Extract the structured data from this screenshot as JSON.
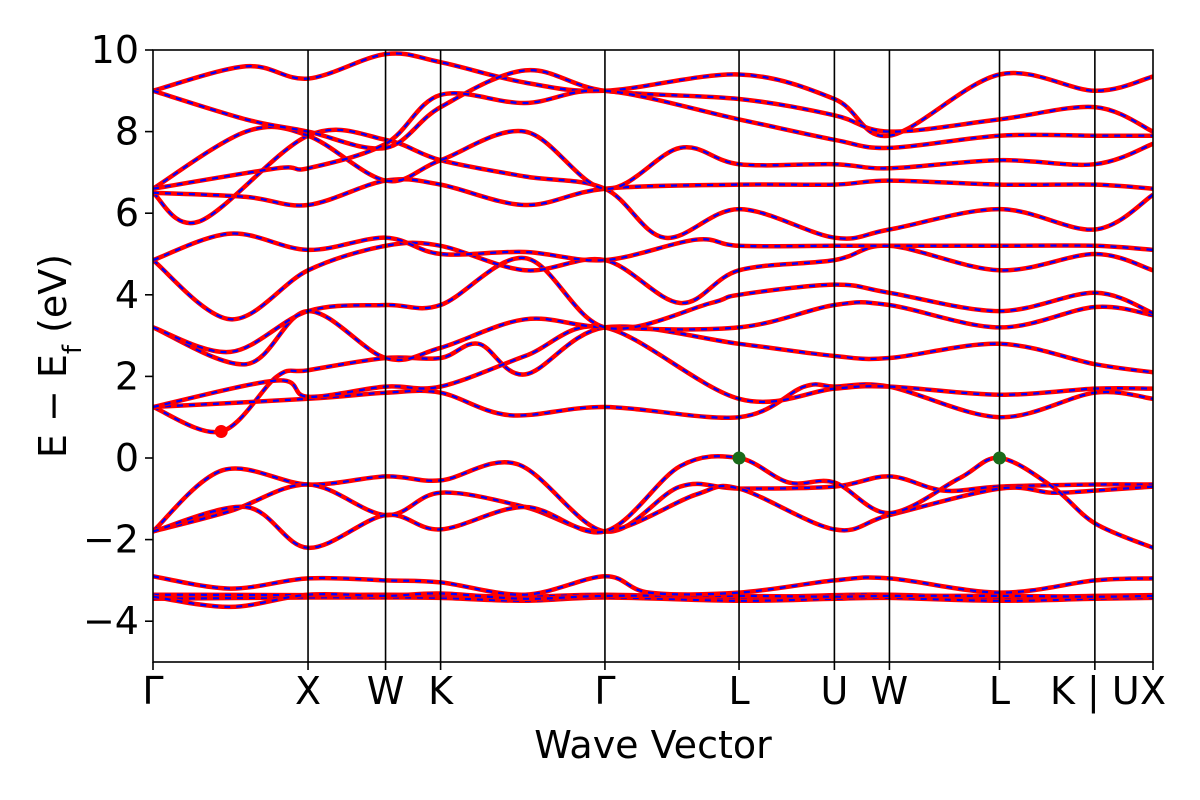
{
  "chart_data": {
    "type": "line",
    "title": "",
    "xlabel": "Wave Vector",
    "ylabel": "E − E",
    "ylabel_sub": "f",
    "ylabel_unit": "(eV)",
    "ylim": [
      -5,
      10
    ],
    "yticks": [
      {
        "value": -4,
        "label": "−4"
      },
      {
        "value": -2,
        "label": "−2"
      },
      {
        "value": 0,
        "label": "0"
      },
      {
        "value": 2,
        "label": "2"
      },
      {
        "value": 4,
        "label": "4"
      },
      {
        "value": 6,
        "label": "6"
      },
      {
        "value": 8,
        "label": "8"
      },
      {
        "value": 10,
        "label": "10"
      }
    ],
    "xlim": [
      0,
      6.45
    ],
    "kpoints": [
      {
        "label": "Γ",
        "x": 0.0
      },
      {
        "label": "X",
        "x": 1.0
      },
      {
        "label": "W",
        "x": 1.5
      },
      {
        "label": "K",
        "x": 1.855
      },
      {
        "label": "Γ",
        "x": 2.915
      },
      {
        "label": "L",
        "x": 3.78
      },
      {
        "label": "U",
        "x": 4.395
      },
      {
        "label": "W",
        "x": 4.75
      },
      {
        "label": "L",
        "x": 5.46
      },
      {
        "label": "K | U",
        "x": 6.075
      },
      {
        "label": "X",
        "x": 6.45
      }
    ],
    "grid": false,
    "series_colors": {
      "spin_up": "#0000ff",
      "spin_down": "#ff0000"
    },
    "markers": [
      {
        "name": "CBM",
        "x": 0.44,
        "y": 0.65,
        "color": "#ff0000"
      },
      {
        "name": "VBM",
        "x": 3.78,
        "y": 0.0,
        "color": "#1a6b1a"
      },
      {
        "name": "VBM",
        "x": 5.46,
        "y": 0.0,
        "color": "#1a6b1a"
      }
    ],
    "bands": [
      [
        [
          0,
          -3.45
        ],
        [
          1,
          -3.42
        ],
        [
          1.5,
          -3.42
        ],
        [
          1.855,
          -3.43
        ],
        [
          2.4,
          -3.5
        ],
        [
          2.915,
          -3.42
        ],
        [
          3.78,
          -3.5
        ],
        [
          4.395,
          -3.45
        ],
        [
          4.75,
          -3.43
        ],
        [
          5.46,
          -3.5
        ],
        [
          6.075,
          -3.45
        ],
        [
          6.45,
          -3.43
        ]
      ],
      [
        [
          0,
          -3.35
        ],
        [
          1,
          -3.36
        ],
        [
          1.5,
          -3.35
        ],
        [
          1.855,
          -3.36
        ],
        [
          2.4,
          -3.4
        ],
        [
          2.915,
          -3.35
        ],
        [
          3.78,
          -3.42
        ],
        [
          4.395,
          -3.36
        ],
        [
          4.75,
          -3.35
        ],
        [
          5.46,
          -3.42
        ],
        [
          6.075,
          -3.38
        ],
        [
          6.45,
          -3.36
        ]
      ],
      [
        [
          0,
          -3.4
        ],
        [
          0.5,
          -3.65
        ],
        [
          1,
          -3.35
        ],
        [
          1.5,
          -3.38
        ],
        [
          1.855,
          -3.32
        ],
        [
          2.4,
          -3.45
        ],
        [
          2.915,
          -3.38
        ],
        [
          3.78,
          -3.38
        ],
        [
          4.395,
          -3.4
        ],
        [
          4.75,
          -3.38
        ],
        [
          5.46,
          -3.38
        ],
        [
          6.075,
          -3.4
        ],
        [
          6.45,
          -3.38
        ]
      ],
      [
        [
          0,
          -2.9
        ],
        [
          0.5,
          -3.2
        ],
        [
          1,
          -2.95
        ],
        [
          1.5,
          -3.0
        ],
        [
          1.855,
          -3.05
        ],
        [
          2.4,
          -3.35
        ],
        [
          2.915,
          -2.9
        ],
        [
          3.2,
          -3.3
        ],
        [
          3.78,
          -3.3
        ],
        [
          4.395,
          -3.0
        ],
        [
          4.75,
          -2.95
        ],
        [
          5.46,
          -3.3
        ],
        [
          6.075,
          -3.0
        ],
        [
          6.45,
          -2.95
        ]
      ],
      [
        [
          0,
          -1.8
        ],
        [
          0.45,
          -0.3
        ],
        [
          1,
          -0.65
        ],
        [
          1.5,
          -0.45
        ],
        [
          1.855,
          -0.55
        ],
        [
          2.35,
          -0.15
        ],
        [
          2.915,
          -1.8
        ],
        [
          3.4,
          -0.7
        ],
        [
          3.78,
          -0.75
        ],
        [
          4.395,
          -0.7
        ],
        [
          4.75,
          -0.45
        ],
        [
          5.1,
          -0.8
        ],
        [
          5.46,
          -0.7
        ],
        [
          6.075,
          -0.65
        ],
        [
          6.45,
          -0.65
        ]
      ],
      [
        [
          0,
          -1.8
        ],
        [
          0.5,
          -1.3
        ],
        [
          1,
          -0.65
        ],
        [
          1.5,
          -1.4
        ],
        [
          1.855,
          -0.85
        ],
        [
          2.4,
          -1.2
        ],
        [
          2.915,
          -1.8
        ],
        [
          3.5,
          -0.9
        ],
        [
          3.78,
          -0.75
        ],
        [
          4.395,
          -1.75
        ],
        [
          4.75,
          -1.4
        ],
        [
          5.46,
          -0.75
        ],
        [
          5.8,
          -0.85
        ],
        [
          6.075,
          -0.8
        ],
        [
          6.45,
          -0.7
        ]
      ],
      [
        [
          0,
          -1.8
        ],
        [
          0.6,
          -1.2
        ],
        [
          1,
          -2.2
        ],
        [
          1.5,
          -1.4
        ],
        [
          1.855,
          -1.75
        ],
        [
          2.4,
          -1.2
        ],
        [
          2.915,
          -1.8
        ],
        [
          3.4,
          -0.2
        ],
        [
          3.78,
          0.0
        ],
        [
          4.1,
          -0.6
        ],
        [
          4.395,
          -0.6
        ],
        [
          4.75,
          -1.35
        ],
        [
          5.2,
          -0.5
        ],
        [
          5.46,
          0.0
        ],
        [
          5.8,
          -0.7
        ],
        [
          6.075,
          -1.6
        ],
        [
          6.45,
          -2.2
        ]
      ],
      [
        [
          0,
          1.25
        ],
        [
          0.44,
          0.65
        ],
        [
          0.8,
          2.0
        ],
        [
          1,
          2.15
        ],
        [
          1.5,
          2.45
        ],
        [
          1.855,
          2.45
        ],
        [
          2.1,
          2.8
        ],
        [
          2.4,
          2.05
        ],
        [
          2.915,
          3.2
        ],
        [
          3.78,
          2.8
        ],
        [
          4.395,
          2.5
        ],
        [
          4.75,
          2.45
        ],
        [
          5.46,
          2.8
        ],
        [
          6.075,
          2.3
        ],
        [
          6.45,
          2.1
        ]
      ],
      [
        [
          0,
          1.25
        ],
        [
          1,
          1.45
        ],
        [
          1.5,
          1.6
        ],
        [
          1.855,
          1.6
        ],
        [
          2.3,
          1.05
        ],
        [
          2.915,
          1.25
        ],
        [
          3.78,
          1.0
        ],
        [
          4.2,
          1.75
        ],
        [
          4.395,
          1.75
        ],
        [
          4.75,
          1.75
        ],
        [
          5.46,
          1.0
        ],
        [
          6.075,
          1.6
        ],
        [
          6.45,
          1.45
        ]
      ],
      [
        [
          0,
          1.25
        ],
        [
          0.8,
          1.9
        ],
        [
          1,
          1.5
        ],
        [
          1.5,
          1.75
        ],
        [
          1.855,
          1.75
        ],
        [
          2.4,
          2.5
        ],
        [
          2.915,
          3.2
        ],
        [
          3.78,
          1.45
        ],
        [
          4.395,
          1.7
        ],
        [
          4.75,
          1.75
        ],
        [
          5.46,
          1.55
        ],
        [
          6.075,
          1.7
        ],
        [
          6.45,
          1.7
        ]
      ],
      [
        [
          0,
          3.2
        ],
        [
          0.6,
          2.3
        ],
        [
          1,
          3.6
        ],
        [
          1.5,
          2.45
        ],
        [
          1.855,
          2.7
        ],
        [
          2.4,
          3.4
        ],
        [
          2.915,
          3.2
        ],
        [
          3.78,
          3.2
        ],
        [
          4.395,
          3.75
        ],
        [
          4.75,
          3.75
        ],
        [
          5.46,
          3.2
        ],
        [
          6.075,
          3.7
        ],
        [
          6.45,
          3.5
        ]
      ],
      [
        [
          0,
          3.2
        ],
        [
          0.5,
          2.6
        ],
        [
          1,
          3.6
        ],
        [
          1.5,
          3.75
        ],
        [
          1.855,
          3.75
        ],
        [
          2.4,
          4.9
        ],
        [
          2.915,
          3.2
        ],
        [
          3.6,
          3.8
        ],
        [
          3.78,
          4.0
        ],
        [
          4.395,
          4.25
        ],
        [
          4.75,
          4.05
        ],
        [
          5.46,
          3.6
        ],
        [
          6.075,
          4.05
        ],
        [
          6.45,
          3.55
        ]
      ],
      [
        [
          0,
          4.85
        ],
        [
          0.5,
          3.4
        ],
        [
          1,
          4.6
        ],
        [
          1.5,
          5.2
        ],
        [
          1.855,
          5.2
        ],
        [
          2.4,
          4.6
        ],
        [
          2.915,
          4.85
        ],
        [
          3.4,
          3.8
        ],
        [
          3.78,
          4.6
        ],
        [
          4.395,
          4.85
        ],
        [
          4.75,
          5.2
        ],
        [
          5.46,
          4.6
        ],
        [
          6.075,
          5.0
        ],
        [
          6.45,
          4.6
        ]
      ],
      [
        [
          0,
          4.85
        ],
        [
          0.5,
          5.5
        ],
        [
          1,
          5.1
        ],
        [
          1.5,
          5.4
        ],
        [
          1.855,
          5.0
        ],
        [
          2.4,
          5.05
        ],
        [
          2.915,
          4.85
        ],
        [
          3.5,
          5.35
        ],
        [
          3.78,
          5.2
        ],
        [
          4.395,
          5.2
        ],
        [
          4.75,
          5.2
        ],
        [
          5.46,
          5.2
        ],
        [
          6.075,
          5.2
        ],
        [
          6.45,
          5.1
        ]
      ],
      [
        [
          0,
          6.5
        ],
        [
          0.3,
          5.8
        ],
        [
          1,
          7.9
        ],
        [
          1.5,
          7.8
        ],
        [
          1.855,
          7.3
        ],
        [
          2.4,
          6.9
        ],
        [
          2.915,
          6.6
        ],
        [
          3.3,
          5.4
        ],
        [
          3.78,
          6.1
        ],
        [
          4.395,
          5.4
        ],
        [
          4.75,
          5.6
        ],
        [
          5.46,
          6.1
        ],
        [
          6.075,
          5.6
        ],
        [
          6.45,
          6.45
        ]
      ],
      [
        [
          0,
          6.5
        ],
        [
          0.6,
          6.4
        ],
        [
          1,
          6.2
        ],
        [
          1.5,
          6.8
        ],
        [
          1.855,
          6.7
        ],
        [
          2.4,
          6.2
        ],
        [
          2.915,
          6.6
        ],
        [
          3.78,
          6.7
        ],
        [
          4.395,
          6.7
        ],
        [
          4.75,
          6.8
        ],
        [
          5.46,
          6.7
        ],
        [
          6.075,
          6.7
        ],
        [
          6.45,
          6.6
        ]
      ],
      [
        [
          0,
          6.6
        ],
        [
          0.6,
          8.0
        ],
        [
          1,
          7.9
        ],
        [
          1.5,
          6.8
        ],
        [
          1.855,
          7.3
        ],
        [
          2.4,
          8.0
        ],
        [
          2.915,
          6.6
        ],
        [
          3.4,
          7.6
        ],
        [
          3.78,
          7.2
        ],
        [
          4.395,
          7.2
        ],
        [
          4.75,
          7.1
        ],
        [
          5.46,
          7.3
        ],
        [
          6.075,
          7.2
        ],
        [
          6.45,
          7.7
        ]
      ],
      [
        [
          0,
          9.0
        ],
        [
          0.6,
          9.6
        ],
        [
          1,
          9.3
        ],
        [
          1.5,
          9.9
        ],
        [
          1.855,
          9.7
        ],
        [
          2.4,
          9.2
        ],
        [
          2.915,
          9.0
        ],
        [
          3.78,
          9.4
        ],
        [
          4.395,
          8.8
        ],
        [
          4.75,
          7.9
        ],
        [
          5.46,
          9.4
        ],
        [
          6.075,
          9.0
        ],
        [
          6.45,
          9.35
        ]
      ],
      [
        [
          0,
          9.0
        ],
        [
          0.6,
          8.3
        ],
        [
          1,
          8.0
        ],
        [
          1.5,
          7.6
        ],
        [
          1.855,
          8.6
        ],
        [
          2.4,
          9.5
        ],
        [
          2.915,
          9.0
        ],
        [
          3.78,
          8.8
        ],
        [
          4.395,
          8.4
        ],
        [
          4.75,
          8.0
        ],
        [
          5.46,
          8.3
        ],
        [
          6.075,
          8.6
        ],
        [
          6.45,
          8.0
        ]
      ],
      [
        [
          0,
          6.6
        ],
        [
          0.8,
          7.1
        ],
        [
          1,
          7.1
        ],
        [
          1.5,
          7.7
        ],
        [
          1.855,
          8.9
        ],
        [
          2.4,
          8.7
        ],
        [
          2.915,
          9.0
        ],
        [
          3.78,
          8.3
        ],
        [
          4.395,
          7.8
        ],
        [
          4.75,
          7.6
        ],
        [
          5.46,
          7.9
        ],
        [
          6.075,
          7.9
        ],
        [
          6.45,
          7.9
        ]
      ]
    ]
  }
}
